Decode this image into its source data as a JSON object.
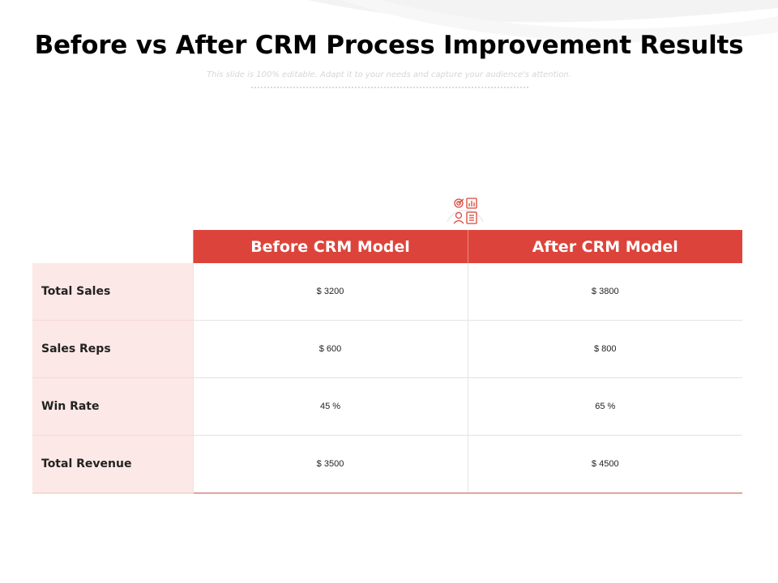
{
  "slide": {
    "title": "Before vs After CRM Process Improvement Results",
    "subtitle": "This slide is 100% editable. Adapt it to your needs and capture your audience's attention."
  },
  "icon": {
    "name": "crm-analytics-icon",
    "color": "#dc443b"
  },
  "table": {
    "headers": [
      "Before CRM Model",
      "After CRM Model"
    ],
    "rows": [
      {
        "label": "Total Sales",
        "before": "$ 3200",
        "after": "$ 3800"
      },
      {
        "label": "Sales Reps",
        "before": "$ 600",
        "after": "$ 800"
      },
      {
        "label": "Win Rate",
        "before": "45 %",
        "after": "65 %"
      },
      {
        "label": "Total Revenue",
        "before": "$ 3500",
        "after": "$ 4500"
      }
    ]
  },
  "colors": {
    "header_bg": "#dc443b",
    "label_bg": "#fce8e6",
    "header_text": "#ffffff"
  }
}
